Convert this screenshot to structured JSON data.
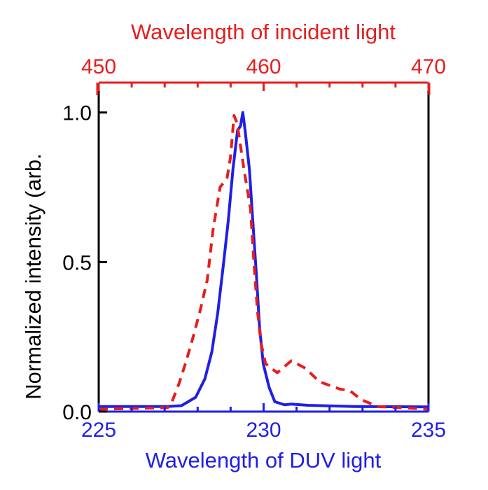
{
  "chart_data": {
    "type": "line",
    "title": "",
    "ylabel": "Normalized intensity (arb.",
    "ylim": [
      0,
      1.1
    ],
    "yticks": [
      "0.0",
      "0.5",
      "1.0"
    ],
    "grid": false,
    "x_bottom": {
      "label": "Wavelength of DUV light",
      "range": [
        225,
        235
      ],
      "ticks": [
        "225",
        "230",
        "235"
      ],
      "color": "#1f1fe6"
    },
    "x_top": {
      "label": "Wavelength of incident light",
      "range": [
        450,
        470
      ],
      "ticks": [
        "450",
        "460",
        "470"
      ],
      "color": "#e61e1e"
    },
    "series": [
      {
        "axis": "bottom",
        "style": "solid",
        "color": "#1f1fe6",
        "x": [
          225.0,
          227.09,
          227.51,
          227.94,
          228.22,
          228.43,
          228.61,
          228.79,
          228.93,
          229.07,
          229.21,
          229.3,
          229.37,
          229.44,
          229.57,
          229.67,
          229.78,
          229.88,
          229.99,
          230.17,
          230.34,
          230.63,
          230.84,
          231.34,
          232.04,
          232.75,
          235.0
        ],
        "y": [
          0.017,
          0.017,
          0.02,
          0.048,
          0.11,
          0.2,
          0.33,
          0.5,
          0.64,
          0.81,
          0.94,
          0.955,
          1.0,
          0.94,
          0.81,
          0.64,
          0.46,
          0.28,
          0.16,
          0.08,
          0.033,
          0.023,
          0.025,
          0.021,
          0.019,
          0.017,
          0.016
        ]
      },
      {
        "axis": "top",
        "style": "dashed",
        "color": "#e61e1e",
        "x": [
          450.0,
          454.18,
          454.39,
          454.88,
          455.31,
          455.73,
          456.16,
          456.58,
          456.94,
          457.36,
          457.78,
          457.99,
          458.21,
          458.35,
          458.49,
          458.78,
          458.99,
          459.2,
          459.41,
          459.62,
          459.84,
          460.12,
          460.83,
          461.68,
          462.53,
          463.38,
          464.65,
          465.22,
          465.92,
          466.91,
          470.0
        ],
        "y": [
          0.008,
          0.013,
          0.025,
          0.095,
          0.17,
          0.25,
          0.34,
          0.44,
          0.61,
          0.75,
          0.78,
          0.85,
          0.99,
          0.97,
          0.93,
          0.82,
          0.75,
          0.68,
          0.5,
          0.34,
          0.23,
          0.16,
          0.13,
          0.17,
          0.145,
          0.1,
          0.075,
          0.071,
          0.04,
          0.017,
          0.008
        ]
      }
    ]
  }
}
